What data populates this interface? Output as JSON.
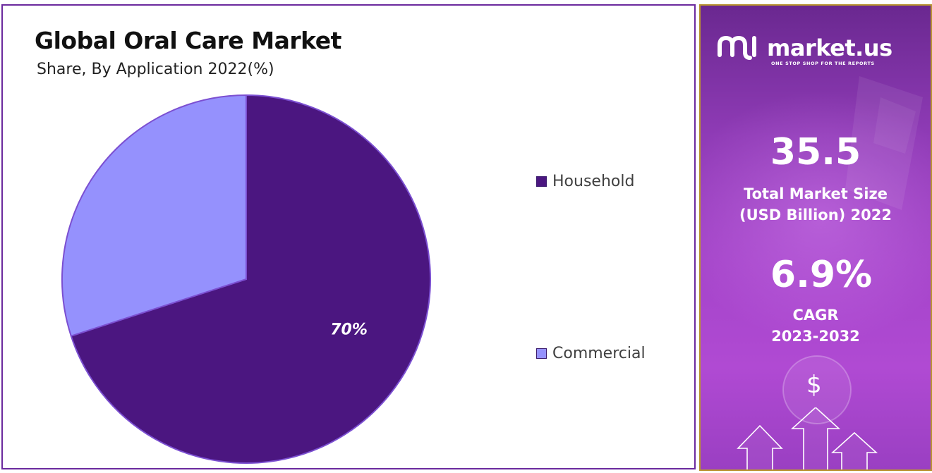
{
  "chart_data": {
    "type": "pie",
    "title": "Global Oral Care Market",
    "subtitle": "Share, By Application 2022(%)",
    "slices": [
      {
        "label": "Household",
        "value": 70,
        "data_label": "70%",
        "color": "#4b1680"
      },
      {
        "label": "Commercial",
        "value": 30,
        "data_label": "",
        "color": "#9591fd"
      }
    ],
    "legend_position": "right"
  },
  "panel": {
    "brand_name": "market.us",
    "brand_tagline": "ONE STOP SHOP FOR THE REPORTS",
    "market_size_value": "35.5",
    "market_size_label_line1": "Total Market Size",
    "market_size_label_line2": "(USD Billion) 2022",
    "cagr_value": "6.9%",
    "cagr_label_line1": "CAGR",
    "cagr_label_line2": "2023-2032",
    "currency_symbol": "$",
    "icons": [
      "market-us-logo-icon",
      "dollar-icon",
      "up-arrow-icon"
    ]
  },
  "colors": {
    "panel_border": "#6b2a9e",
    "info_border": "#b9932f",
    "info_gradient_top": "#6a2890",
    "info_gradient_bottom": "#b04ad3"
  }
}
